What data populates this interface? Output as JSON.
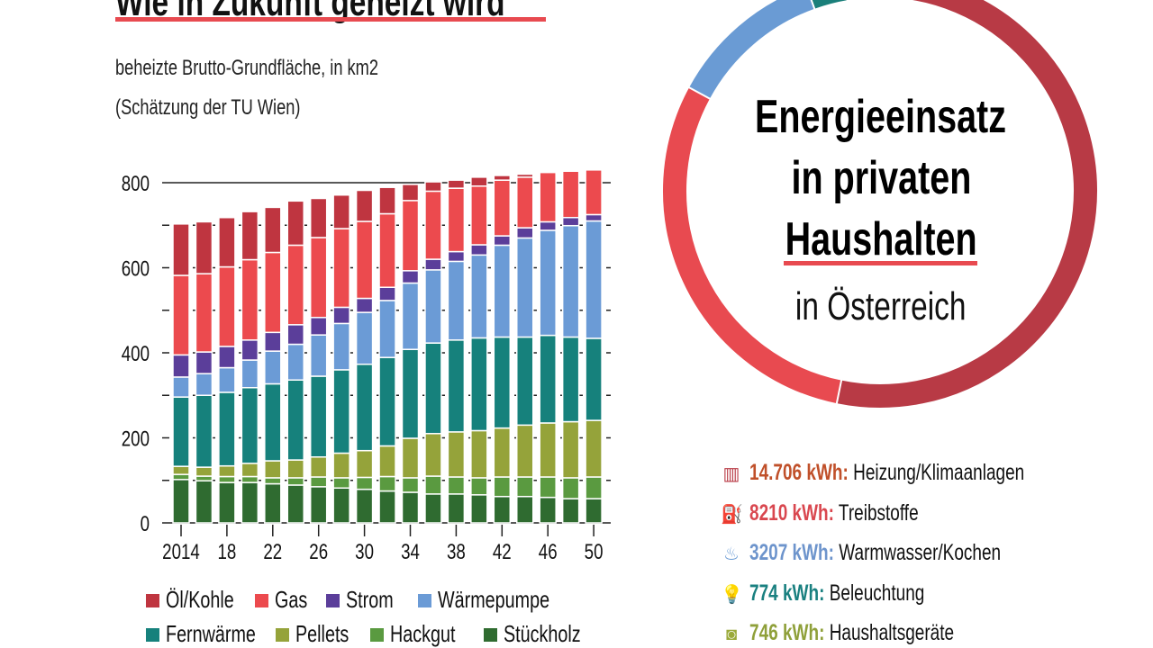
{
  "title": "Wie in Zukunft geheizt wird",
  "subtitle_line1": "beheizte Brutto-Grundfläche, in km2",
  "subtitle_line2": "(Schätzung der TU Wien)",
  "chart_data": [
    {
      "type": "bar",
      "stacked": true,
      "ylabel": "",
      "xlabel": "",
      "ylim": [
        0,
        800
      ],
      "yticks": [
        0,
        200,
        400,
        600,
        800
      ],
      "x": [
        2014,
        2016,
        2018,
        2020,
        2022,
        2024,
        2026,
        2028,
        2030,
        2032,
        2034,
        2036,
        2038,
        2040,
        2042,
        2044,
        2046,
        2048,
        2050
      ],
      "xtick_labels": [
        "2014",
        "18",
        "22",
        "26",
        "30",
        "34",
        "38",
        "42",
        "46",
        "50"
      ],
      "grid": "horizontal dashed every 100",
      "legend_placement": "bottom",
      "series": [
        {
          "name": "Stückholz",
          "color": "#2f6b30",
          "values": [
            102,
            99,
            95,
            95,
            92,
            89,
            85,
            82,
            79,
            75,
            72,
            68,
            68,
            66,
            62,
            62,
            60,
            57,
            57
          ]
        },
        {
          "name": "Hackgut",
          "color": "#5a9a40",
          "values": [
            12,
            11,
            14,
            14,
            14,
            17,
            23,
            24,
            28,
            34,
            34,
            42,
            40,
            40,
            46,
            46,
            48,
            49,
            51
          ]
        },
        {
          "name": "Pellets",
          "color": "#95a33a",
          "values": [
            19,
            21,
            25,
            31,
            40,
            42,
            47,
            58,
            63,
            72,
            93,
            100,
            106,
            111,
            115,
            122,
            127,
            132,
            133
          ]
        },
        {
          "name": "Fernwärme",
          "color": "#16817c",
          "values": [
            163,
            169,
            173,
            178,
            181,
            188,
            190,
            196,
            203,
            208,
            209,
            213,
            216,
            218,
            214,
            207,
            206,
            199,
            193
          ]
        },
        {
          "name": "Wärmepumpe",
          "color": "#6b9bd6",
          "values": [
            47,
            51,
            58,
            65,
            77,
            84,
            97,
            109,
            122,
            134,
            156,
            172,
            185,
            195,
            216,
            233,
            247,
            262,
            276
          ]
        },
        {
          "name": "Strom",
          "color": "#5b3e9a",
          "values": [
            52,
            51,
            50,
            47,
            44,
            46,
            41,
            38,
            33,
            31,
            29,
            25,
            23,
            24,
            22,
            24,
            20,
            19,
            15
          ]
        },
        {
          "name": "Gas",
          "color": "#ec4a4e",
          "values": [
            187,
            184,
            187,
            189,
            188,
            187,
            188,
            185,
            181,
            173,
            165,
            160,
            149,
            138,
            131,
            119,
            116,
            109,
            105
          ]
        },
        {
          "name": "Öl/Kohle",
          "color": "#bf3540",
          "values": [
            121,
            122,
            116,
            113,
            106,
            104,
            92,
            79,
            73,
            62,
            38,
            22,
            19,
            21,
            11,
            7,
            0,
            0,
            0
          ]
        }
      ],
      "legend_order": [
        "Öl/Kohle",
        "Gas",
        "Strom",
        "Wärmepumpe",
        "Fernwärme",
        "Pellets",
        "Hackgut",
        "Stückholz"
      ]
    },
    {
      "type": "pie",
      "donut": true,
      "title_lines": [
        "Energieeinsatz",
        "in privaten",
        "Haushalten"
      ],
      "subtitle": "in Österreich",
      "unit": "kWh",
      "slices": [
        {
          "label": "Heizung/Klimaanlagen",
          "value_text": "14.706 kWh:",
          "value": 14706,
          "color": "#b83a45",
          "text_color": "#c0502a",
          "icon": "radiator-icon"
        },
        {
          "label": "Treibstoffe",
          "value_text": "8210 kWh:",
          "value": 8210,
          "color": "#e84a50",
          "text_color": "#d9474f",
          "icon": "fuel-canister-icon"
        },
        {
          "label": "Warmwasser/Kochen",
          "value_text": "3207 kWh:",
          "value": 3207,
          "color": "#6a9bd4",
          "text_color": "#6d94cc",
          "icon": "hot-water-icon"
        },
        {
          "label": "Beleuchtung",
          "value_text": "774 kWh:",
          "value": 774,
          "color": "#1a7f7a",
          "text_color": "#1a8080",
          "icon": "lightbulb-icon"
        },
        {
          "label": "Haushaltsgeräte",
          "value_text": "746 kWh:",
          "value": 746,
          "color": "#9aaa3a",
          "text_color": "#8fa03a",
          "icon": "washing-machine-icon"
        }
      ]
    }
  ]
}
